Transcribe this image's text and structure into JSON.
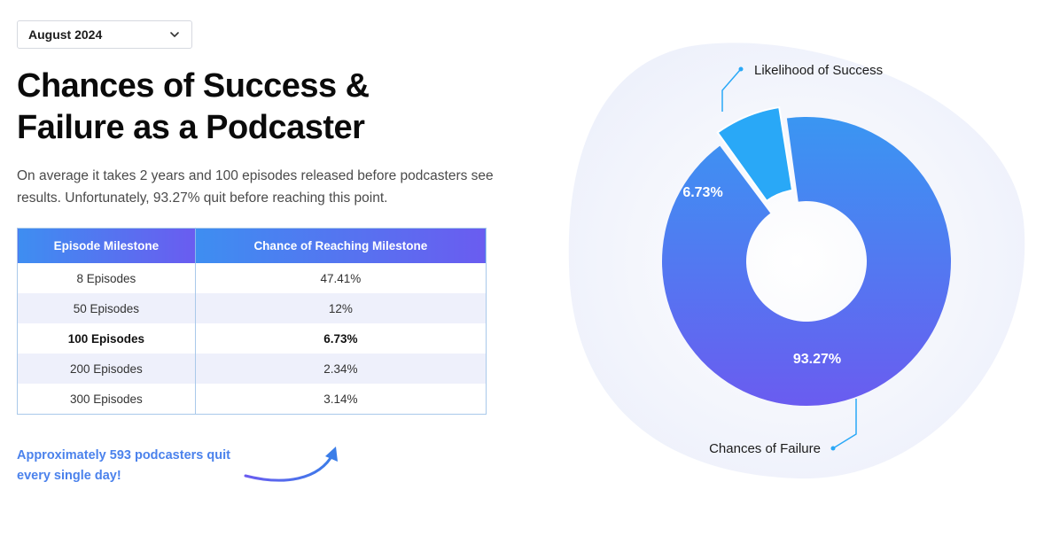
{
  "filter": {
    "selected_month": "August 2024"
  },
  "header": {
    "title_line1": "Chances of Success &",
    "title_line2": "Failure as a Podcaster",
    "description": "On average it takes 2 years and 100 episodes released before podcasters see results. Unfortunately, 93.27% quit before reaching this point."
  },
  "table": {
    "headers": [
      "Episode Milestone",
      "Chance of Reaching Milestone"
    ],
    "rows": [
      {
        "milestone": "8 Episodes",
        "chance": "47.41%"
      },
      {
        "milestone": "50 Episodes",
        "chance": "12%"
      },
      {
        "milestone": "100 Episodes",
        "chance": "6.73%"
      },
      {
        "milestone": "200 Episodes",
        "chance": "2.34%"
      },
      {
        "milestone": "300 Episodes",
        "chance": "3.14%"
      }
    ]
  },
  "callout": {
    "line1": "Approximately 593 podcasters quit",
    "line2": "every single day!"
  },
  "chart_data": {
    "type": "pie",
    "variant": "donut",
    "slices": [
      {
        "name": "Likelihood of Success",
        "value": 6.73,
        "label": "6.73%",
        "color": "#29a8f7",
        "exploded": true
      },
      {
        "name": "Chances of Failure",
        "value": 93.27,
        "label": "93.27%",
        "color": "#5b6cf0"
      }
    ],
    "colors": {
      "failure_top": "#3a96f2",
      "failure_bottom": "#6a5cf0",
      "success": "#29a8f7",
      "leader": "#29a8f7"
    }
  }
}
